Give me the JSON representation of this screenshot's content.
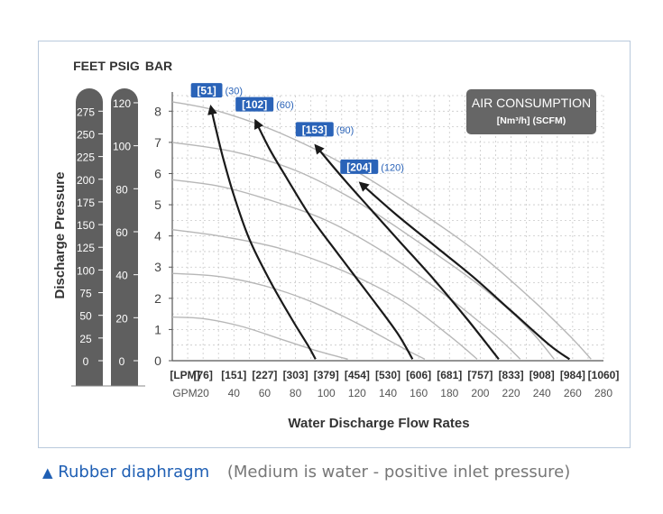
{
  "chart_data": {
    "type": "line",
    "xlabel": "Water Discharge Flow Rates",
    "ylabel": "Discharge Pressure",
    "xlim": [
      0,
      280
    ],
    "ylim": [
      0,
      8.5
    ],
    "x_unit_label": "GPM",
    "x_ticks": [
      20,
      40,
      60,
      80,
      100,
      120,
      140,
      160,
      180,
      200,
      220,
      240,
      260,
      280
    ],
    "x_secondary_unit_label": "[LPM]",
    "x_secondary_ticks": [
      "[76]",
      "[151]",
      "[227]",
      "[303]",
      "[379]",
      "[454]",
      "[530]",
      "[606]",
      "[681]",
      "[757]",
      "[833]",
      "[908]",
      "[984]",
      "[1060]"
    ],
    "y_ticks": [
      0,
      1,
      2,
      3,
      4,
      5,
      6,
      7,
      8
    ],
    "psig_label": "PSIG",
    "psig_ticks": [
      "0",
      "20",
      "40",
      "60",
      "80",
      "100",
      "120"
    ],
    "feet_label": "FEET",
    "feet_ticks": [
      "0",
      "25",
      "50",
      "75",
      "100",
      "125",
      "150",
      "175",
      "200",
      "225",
      "250",
      "275"
    ],
    "bar_label": "BAR",
    "grid": true,
    "legend_title": "AIR CONSUMPTION",
    "legend_subtitle": "[Nm³/h] (SCFM)",
    "legend_placement": "top-right",
    "air_curves": [
      {
        "label_main": "[51]",
        "label_sub": "(30)",
        "x": [
          25,
          28,
          33,
          40,
          50,
          63,
          78,
          88,
          93
        ],
        "y": [
          8.15,
          7.5,
          6.5,
          5.3,
          3.9,
          2.6,
          1.3,
          0.5,
          0.05
        ]
      },
      {
        "label_main": "[102]",
        "label_sub": "(60)",
        "x": [
          54,
          63,
          75,
          90,
          108,
          128,
          146,
          156
        ],
        "y": [
          7.7,
          6.8,
          5.8,
          4.6,
          3.4,
          2.1,
          0.9,
          0.05
        ]
      },
      {
        "label_main": "[153]",
        "label_sub": "(90)",
        "x": [
          93,
          110,
          128,
          148,
          170,
          192,
          212
        ],
        "y": [
          6.9,
          5.9,
          4.9,
          3.8,
          2.6,
          1.3,
          0.05
        ]
      },
      {
        "label_main": "[204]",
        "label_sub": "(120)",
        "x": [
          122,
          145,
          170,
          195,
          220,
          245,
          258
        ],
        "y": [
          5.7,
          4.7,
          3.7,
          2.7,
          1.6,
          0.5,
          0.05
        ]
      }
    ],
    "pressure_curves": [
      {
        "x": [
          0,
          30,
          70,
          115,
          160,
          200,
          235,
          258,
          272
        ],
        "y": [
          8.3,
          8.0,
          7.3,
          6.2,
          4.8,
          3.4,
          1.9,
          0.8,
          0.05
        ]
      },
      {
        "x": [
          0,
          40,
          80,
          120,
          160,
          200,
          230,
          248
        ],
        "y": [
          7.0,
          6.7,
          6.1,
          5.1,
          3.8,
          2.4,
          1.1,
          0.05
        ]
      },
      {
        "x": [
          0,
          30,
          60,
          100,
          140,
          180,
          210,
          226
        ],
        "y": [
          5.8,
          5.6,
          5.2,
          4.5,
          3.4,
          2.0,
          0.8,
          0.05
        ]
      },
      {
        "x": [
          0,
          30,
          70,
          110,
          150,
          180,
          198
        ],
        "y": [
          4.2,
          4.0,
          3.6,
          2.9,
          1.9,
          0.8,
          0.05
        ]
      },
      {
        "x": [
          0,
          30,
          60,
          90,
          120,
          150,
          164
        ],
        "y": [
          2.8,
          2.7,
          2.4,
          1.9,
          1.2,
          0.4,
          0.05
        ]
      },
      {
        "x": [
          0,
          20,
          45,
          70,
          95,
          114
        ],
        "y": [
          1.4,
          1.35,
          1.1,
          0.7,
          0.3,
          0.05
        ]
      }
    ]
  },
  "caption": {
    "material": "Rubber diaphragm",
    "note": "(Medium is water -  positive inlet pressure)"
  },
  "colors": {
    "pill": "#5f5f5f",
    "label_box": "#2a63b8",
    "legend_box": "#666666",
    "air_curve": "#1a1a1a",
    "pressure_curve": "#b7b7b7",
    "accent_blue": "#1f5fb4"
  }
}
